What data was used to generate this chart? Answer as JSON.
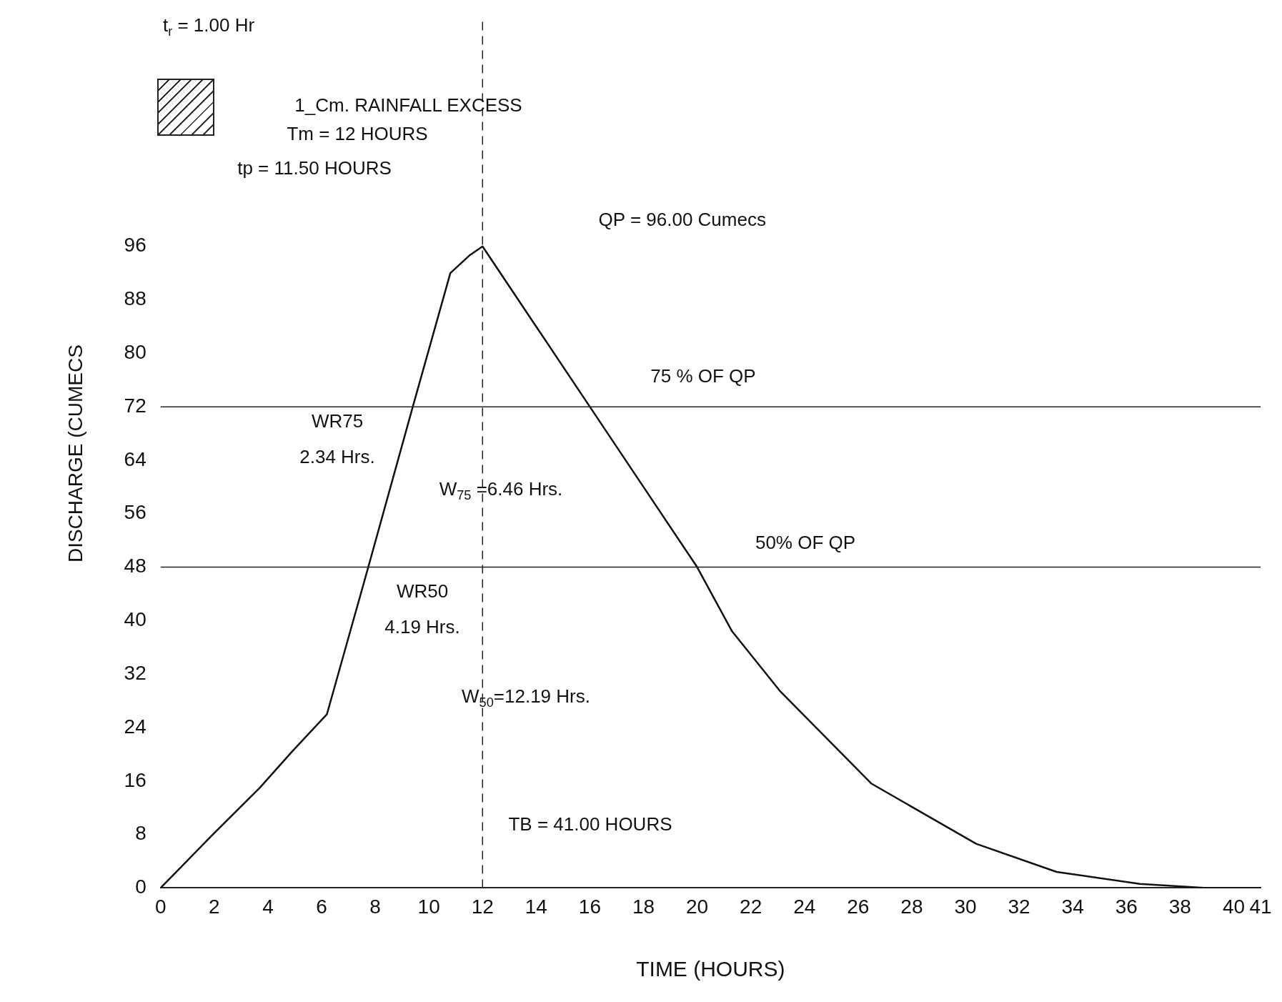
{
  "chart_data": {
    "type": "line",
    "xlabel": "TIME (HOURS)",
    "ylabel": "DISCHARGE (CUMECS",
    "x": [
      0,
      1.9,
      3.7,
      4.9,
      6.2,
      7.74,
      9.4,
      10.8,
      11.5,
      12,
      14,
      16,
      18,
      20,
      21.3,
      23.1,
      26.5,
      30.4,
      33.4,
      36.5,
      39,
      41
    ],
    "series": [
      {
        "color": "#111111",
        "values": [
          0,
          7.8,
          15,
          20.4,
          26,
          48,
          72,
          92,
          94.6,
          96,
          84,
          72,
          60,
          48,
          38.4,
          29.4,
          15.6,
          6.6,
          2.4,
          0.6,
          0,
          0
        ]
      }
    ],
    "xlim": [
      0,
      41
    ],
    "xticks": [
      0,
      2,
      4,
      6,
      8,
      10,
      12,
      14,
      16,
      18,
      20,
      22,
      24,
      26,
      28,
      30,
      32,
      34,
      36,
      38,
      40,
      41
    ],
    "ylim": [
      0,
      130
    ],
    "yticks": [
      0,
      8,
      16,
      24,
      32,
      40,
      48,
      56,
      64,
      72,
      80,
      88,
      96
    ],
    "grid": false,
    "legend": false,
    "marker": "none",
    "line_style": "solid",
    "ref_lines": [
      {
        "axis": "x",
        "value": 12,
        "line_style": "dashed"
      },
      {
        "axis": "y",
        "value": 72
      },
      {
        "axis": "y",
        "value": 48
      }
    ],
    "annotations": [
      "t$_{r}$ = 1.00 Hr",
      "1_Cm. RAINFALL EXCESS",
      "Tm = 12 HOURS",
      "tp = 11.50 HOURS",
      "QP = 96.00 Cumecs",
      "75 % OF QP",
      "WR75",
      "2.34 Hrs.",
      "W$_{75}$ =6.46 Hrs.",
      "50% OF QP",
      "WR50",
      "4.19 Hrs.",
      "W$_{50}$=12.19 Hrs.",
      "TB = 41.00 HOURS"
    ]
  }
}
